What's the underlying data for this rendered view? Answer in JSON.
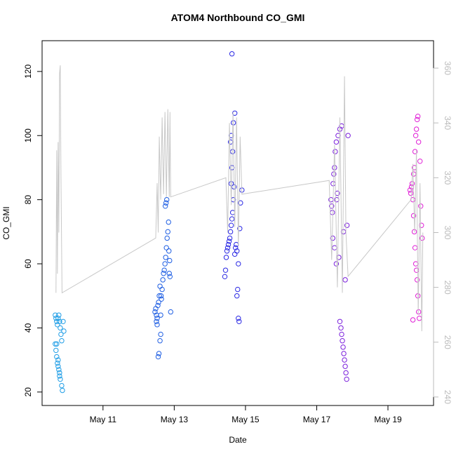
{
  "chart_data": {
    "type": "scatter",
    "title": "ATOM4 Northbound CO_GMI",
    "x_label": "Date",
    "y_label": "CO_GMI",
    "xlim": [
      9.29,
      20.28
    ],
    "xticks": [
      {
        "value": 11,
        "label": "May 11"
      },
      {
        "value": 13,
        "label": "May 13"
      },
      {
        "value": 15,
        "label": "May 15"
      },
      {
        "value": 17,
        "label": "May 17"
      },
      {
        "value": 19,
        "label": "May 19"
      }
    ],
    "ylim": [
      15.8,
      129.6
    ],
    "yticks": [
      20,
      40,
      60,
      80,
      100,
      120
    ],
    "y2lim": [
      236.9,
      370
    ],
    "y2ticks": [
      240,
      260,
      280,
      300,
      320,
      340,
      360
    ],
    "series": [
      {
        "type": "scatter",
        "color": "#1e9de6",
        "x": [
          9.66,
          9.68,
          9.7,
          9.72,
          9.74,
          9.76,
          9.78,
          9.8,
          9.82,
          9.84,
          9.66,
          9.68,
          9.7,
          9.72,
          9.74,
          9.76,
          9.78,
          9.8,
          9.84,
          9.86,
          9.88,
          9.9,
          9.7,
          9.74,
          9.78
        ],
        "values": [
          44,
          43,
          42,
          41,
          43,
          44,
          42,
          40,
          38,
          36,
          35,
          33,
          31,
          29,
          28,
          27,
          25,
          24,
          22,
          20.5,
          42,
          39,
          35,
          30,
          26
        ]
      },
      {
        "type": "scatter",
        "color": "#1e5ee3",
        "x": [
          12.46,
          12.48,
          12.5,
          12.52,
          12.54,
          12.56,
          12.58,
          12.6,
          12.5,
          12.52,
          12.55,
          12.57,
          12.6,
          12.62,
          12.64,
          12.66,
          12.68,
          12.7,
          12.72,
          12.74,
          12.76,
          12.78,
          12.8,
          12.82,
          12.84,
          12.75,
          12.77,
          12.79,
          12.86,
          12.88,
          12.9,
          12.62,
          12.85,
          12.87,
          12.63
        ],
        "values": [
          45,
          46,
          44,
          43,
          47,
          48,
          50,
          53,
          42,
          41,
          31,
          32,
          36,
          38,
          49,
          52,
          55,
          57,
          58,
          60,
          62,
          65,
          68,
          70,
          73,
          78,
          79,
          80,
          57,
          56,
          45,
          44,
          64,
          61,
          50
        ]
      },
      {
        "type": "scatter",
        "color": "#2a28e4",
        "x": [
          14.42,
          14.44,
          14.46,
          14.48,
          14.5,
          14.52,
          14.54,
          14.56,
          14.58,
          14.6,
          14.62,
          14.64,
          14.66,
          14.6,
          14.62,
          14.64,
          14.58,
          14.6,
          14.66,
          14.7,
          14.62,
          14.8,
          14.82,
          14.76,
          14.78,
          14.7,
          14.72,
          14.74,
          14.84,
          14.86,
          14.9,
          14.68,
          14.76,
          14.8
        ],
        "values": [
          56,
          58,
          62,
          64,
          65,
          66,
          67,
          68,
          70,
          72,
          74,
          76,
          80,
          85,
          90,
          95,
          98,
          100,
          104,
          107,
          125.5,
          43,
          42,
          50,
          52,
          63,
          65,
          66,
          71,
          79,
          83,
          84,
          64,
          60
        ]
      },
      {
        "type": "scatter",
        "color": "#7a1edc",
        "x": [
          17.4,
          17.42,
          17.44,
          17.46,
          17.48,
          17.5,
          17.52,
          17.55,
          17.6,
          17.65,
          17.7,
          17.45,
          17.5,
          17.55,
          17.8,
          17.75,
          17.85,
          17.65,
          17.68,
          17.7,
          17.72,
          17.74,
          17.76,
          17.78,
          17.8,
          17.82,
          17.84,
          17.56,
          17.58,
          17.62,
          17.88
        ],
        "values": [
          80,
          78,
          76,
          85,
          88,
          90,
          95,
          98,
          100,
          102,
          103,
          68,
          65,
          60,
          55,
          70,
          72,
          42,
          40,
          38,
          36,
          34,
          32,
          30,
          28,
          26,
          24,
          80,
          82,
          62,
          100
        ]
      },
      {
        "type": "scatter",
        "color": "#e01ed6",
        "x": [
          19.62,
          19.64,
          19.66,
          19.68,
          19.7,
          19.72,
          19.74,
          19.76,
          19.78,
          19.8,
          19.82,
          19.84,
          19.86,
          19.88,
          19.7,
          19.72,
          19.74,
          19.76,
          19.78,
          19.8,
          19.82,
          19.84,
          19.86,
          19.9,
          19.92,
          19.94,
          19.96
        ],
        "values": [
          83,
          82,
          84,
          85,
          80,
          75,
          70,
          65,
          60,
          58,
          55,
          50,
          45,
          43,
          42.5,
          88,
          90,
          95,
          100,
          102,
          105,
          106,
          98,
          92,
          78,
          72,
          68
        ]
      },
      {
        "type": "line",
        "axis": "y2",
        "color": "#c8c8c8",
        "x": [
          9.68,
          9.7,
          9.72,
          9.74,
          9.76,
          9.78,
          9.8,
          9.82,
          9.85,
          12.48,
          12.52,
          12.55,
          12.58,
          12.62,
          12.66,
          12.7,
          12.74,
          12.78,
          12.82,
          12.86,
          12.88,
          12.9,
          14.45,
          14.5,
          14.55,
          14.6,
          14.65,
          14.7,
          14.75,
          14.8,
          14.85,
          14.9,
          17.35,
          17.42,
          17.5,
          17.58,
          17.65,
          17.72,
          17.78,
          17.82,
          17.88,
          19.65,
          19.7,
          19.75,
          19.8,
          19.85,
          19.9,
          19.95,
          19.98
        ],
        "values": [
          278,
          330,
          285,
          333,
          300,
          358,
          361,
          320,
          278,
          298,
          318,
          300,
          335,
          312,
          342,
          314,
          344,
          313,
          345,
          313,
          344,
          313,
          320,
          300,
          340,
          310,
          344,
          302,
          342,
          295,
          335,
          314,
          319,
          290,
          332,
          280,
          342,
          278,
          357,
          300,
          284,
          312,
          325,
          300,
          330,
          270,
          318,
          264,
          300
        ]
      }
    ]
  }
}
